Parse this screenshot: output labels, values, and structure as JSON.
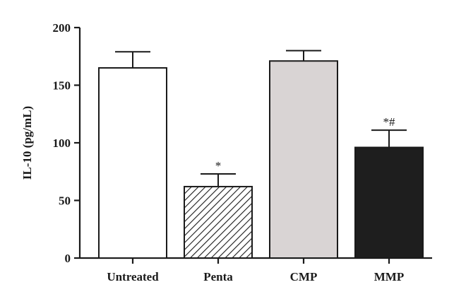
{
  "chart_data": {
    "type": "bar",
    "categories": [
      "Untreated",
      "Penta",
      "CMP",
      "MMP"
    ],
    "values": [
      165,
      62,
      171,
      96
    ],
    "errors": [
      14,
      11,
      9,
      15
    ],
    "annotations": [
      "",
      "*",
      "",
      "*#"
    ],
    "fill_styles": [
      "white",
      "hatched",
      "lightgray",
      "black"
    ],
    "colors": {
      "white": "#ffffff",
      "lightgray": "#d9d4d4",
      "black": "#1e1e1e",
      "stroke": "#1a1a1a"
    },
    "ylabel": "IL-10 (pg/mL)",
    "xlabel": "",
    "ylim": [
      0,
      200
    ],
    "yticks": [
      0,
      50,
      100,
      150,
      200
    ],
    "grid": false,
    "legend": "none"
  }
}
